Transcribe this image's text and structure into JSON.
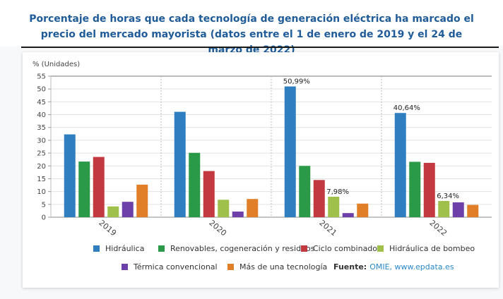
{
  "title": "Porcentaje de horas que cada tecnología de generación eléctrica ha marcado el precio del mercado mayorista (datos entre el 1 de enero de 2019 y el 24 de marzo de 2022)",
  "source": {
    "label": "Fuente:",
    "value": "OMIE, www.epdata.es"
  },
  "chart_data": {
    "type": "bar",
    "ylabel": "% (Unidades)",
    "ylim": [
      0,
      55
    ],
    "yticks": [
      0,
      5,
      10,
      15,
      20,
      25,
      30,
      35,
      40,
      45,
      50,
      55
    ],
    "grid": true,
    "categories": [
      "2019",
      "2020",
      "2021",
      "2022"
    ],
    "series": [
      {
        "name": "Hidráulica",
        "color": "#2f7fc0",
        "values": [
          32.3,
          41.1,
          50.99,
          40.64
        ]
      },
      {
        "name": "Renovables, cogeneración y residuos",
        "color": "#2a9a48",
        "values": [
          21.7,
          25.1,
          20.0,
          21.6
        ]
      },
      {
        "name": "Ciclo combinado",
        "color": "#c23a3f",
        "values": [
          23.5,
          18.0,
          14.5,
          21.2
        ]
      },
      {
        "name": "Hidráulica de bombeo",
        "color": "#9fc04a",
        "values": [
          4.2,
          6.8,
          7.98,
          6.34
        ]
      },
      {
        "name": "Térmica convencional",
        "color": "#6d3fa8",
        "values": [
          6.0,
          2.2,
          1.6,
          5.8
        ]
      },
      {
        "name": "Más de una tecnología",
        "color": "#e07f27",
        "values": [
          12.7,
          7.1,
          5.3,
          4.8
        ]
      }
    ],
    "annotations": [
      {
        "series": 0,
        "category": 2,
        "text": "50,99%"
      },
      {
        "series": 3,
        "category": 2,
        "text": "7,98%"
      },
      {
        "series": 0,
        "category": 3,
        "text": "40,64%"
      },
      {
        "series": 3,
        "category": 3,
        "text": "6,34%"
      }
    ]
  }
}
